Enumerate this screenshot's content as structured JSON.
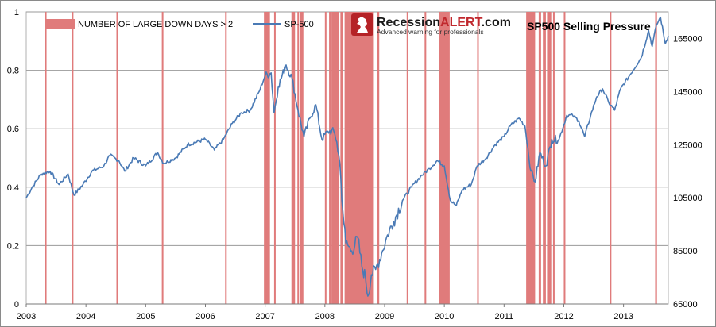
{
  "chart_data": {
    "type": "bar+line",
    "title": "SP500 Selling Pressure",
    "logo": {
      "name_prefix": "Recession",
      "name_accent": "ALERT",
      "name_suffix": ".com",
      "tagline": "Advanced warning for professionals"
    },
    "legend": [
      {
        "name": "NUMBER OF LARGE DOWN DAYS > 2",
        "kind": "bar",
        "color": "#e07b7b"
      },
      {
        "name": "SP-500",
        "kind": "line",
        "color": "#4a7ab5"
      }
    ],
    "x_range": [
      2003.0,
      2013.75
    ],
    "x_ticks": [
      "2003",
      "2004",
      "2005",
      "2006",
      "2007",
      "2008",
      "2009",
      "2010",
      "2011",
      "2012",
      "2013"
    ],
    "y_left": {
      "ticks": [
        "0",
        "0.2",
        "0.4",
        "0.6",
        "0.8",
        "1"
      ],
      "range": [
        0,
        1
      ]
    },
    "y_right": {
      "ticks": [
        "65000",
        "85000",
        "105000",
        "125000",
        "145000",
        "165000"
      ],
      "range": [
        65000,
        175000
      ]
    },
    "signal_periods": [
      [
        2003.31,
        2003.34
      ],
      [
        2003.76,
        2003.79
      ],
      [
        2004.51,
        2004.53
      ],
      [
        2005.27,
        2005.29
      ],
      [
        2006.33,
        2006.35
      ],
      [
        2006.98,
        2007.08
      ],
      [
        2007.15,
        2007.17
      ],
      [
        2007.44,
        2007.5
      ],
      [
        2007.54,
        2007.56
      ],
      [
        2007.58,
        2007.64
      ],
      [
        2008.0,
        2008.02
      ],
      [
        2008.07,
        2008.09
      ],
      [
        2008.11,
        2008.23
      ],
      [
        2008.26,
        2008.3
      ],
      [
        2008.33,
        2008.82
      ],
      [
        2008.87,
        2008.91
      ],
      [
        2009.37,
        2009.39
      ],
      [
        2009.67,
        2009.69
      ],
      [
        2009.91,
        2010.09
      ],
      [
        2010.55,
        2010.57
      ],
      [
        2011.37,
        2011.52
      ],
      [
        2011.58,
        2011.62
      ],
      [
        2011.65,
        2011.7
      ],
      [
        2011.72,
        2011.79
      ],
      [
        2011.82,
        2011.84
      ],
      [
        2012.0,
        2012.02
      ],
      [
        2012.77,
        2012.79
      ],
      [
        2013.53,
        2013.56
      ]
    ],
    "series": [
      {
        "name": "SP-500",
        "axis": "right",
        "points": [
          [
            2003.0,
            105000
          ],
          [
            2003.1,
            109000
          ],
          [
            2003.25,
            114000
          ],
          [
            2003.4,
            115000
          ],
          [
            2003.55,
            110000
          ],
          [
            2003.7,
            114000
          ],
          [
            2003.8,
            106000
          ],
          [
            2003.95,
            110000
          ],
          [
            2004.1,
            115000
          ],
          [
            2004.3,
            117000
          ],
          [
            2004.4,
            121000
          ],
          [
            2004.55,
            119000
          ],
          [
            2004.65,
            115000
          ],
          [
            2004.8,
            120000
          ],
          [
            2005.0,
            117000
          ],
          [
            2005.2,
            122000
          ],
          [
            2005.3,
            118000
          ],
          [
            2005.5,
            120000
          ],
          [
            2005.7,
            125000
          ],
          [
            2006.0,
            127000
          ],
          [
            2006.15,
            123000
          ],
          [
            2006.3,
            127000
          ],
          [
            2006.45,
            133000
          ],
          [
            2006.6,
            137000
          ],
          [
            2006.75,
            138000
          ],
          [
            2006.9,
            145000
          ],
          [
            2007.0,
            151000
          ],
          [
            2007.1,
            152000
          ],
          [
            2007.15,
            137000
          ],
          [
            2007.22,
            147000
          ],
          [
            2007.35,
            155000
          ],
          [
            2007.45,
            150000
          ],
          [
            2007.55,
            138000
          ],
          [
            2007.65,
            128000
          ],
          [
            2007.75,
            135000
          ],
          [
            2007.85,
            140000
          ],
          [
            2007.95,
            127000
          ],
          [
            2008.05,
            130000
          ],
          [
            2008.15,
            130000
          ],
          [
            2008.2,
            126000
          ],
          [
            2008.25,
            118000
          ],
          [
            2008.3,
            100000
          ],
          [
            2008.35,
            88000
          ],
          [
            2008.45,
            85000
          ],
          [
            2008.55,
            90000
          ],
          [
            2008.62,
            79000
          ],
          [
            2008.68,
            75000
          ],
          [
            2008.72,
            68000
          ],
          [
            2008.78,
            76000
          ],
          [
            2008.85,
            78000
          ],
          [
            2008.95,
            84000
          ],
          [
            2009.05,
            91000
          ],
          [
            2009.15,
            96000
          ],
          [
            2009.3,
            104000
          ],
          [
            2009.45,
            109000
          ],
          [
            2009.6,
            113000
          ],
          [
            2009.75,
            116000
          ],
          [
            2009.88,
            119000
          ],
          [
            2010.0,
            117000
          ],
          [
            2010.1,
            104000
          ],
          [
            2010.2,
            102000
          ],
          [
            2010.3,
            108000
          ],
          [
            2010.45,
            110000
          ],
          [
            2010.55,
            117000
          ],
          [
            2010.7,
            120000
          ],
          [
            2010.85,
            125000
          ],
          [
            2011.0,
            128000
          ],
          [
            2011.1,
            132000
          ],
          [
            2011.25,
            135000
          ],
          [
            2011.35,
            132000
          ],
          [
            2011.45,
            115000
          ],
          [
            2011.52,
            111000
          ],
          [
            2011.6,
            122000
          ],
          [
            2011.7,
            117000
          ],
          [
            2011.8,
            127000
          ],
          [
            2011.92,
            127000
          ],
          [
            2012.05,
            136000
          ],
          [
            2012.15,
            136000
          ],
          [
            2012.25,
            134000
          ],
          [
            2012.35,
            128000
          ],
          [
            2012.45,
            136000
          ],
          [
            2012.55,
            143000
          ],
          [
            2012.65,
            146000
          ],
          [
            2012.75,
            141000
          ],
          [
            2012.85,
            138000
          ],
          [
            2012.95,
            146000
          ],
          [
            2013.1,
            151000
          ],
          [
            2013.3,
            158000
          ],
          [
            2013.42,
            168000
          ],
          [
            2013.48,
            162000
          ],
          [
            2013.55,
            170000
          ],
          [
            2013.62,
            173000
          ],
          [
            2013.7,
            163000
          ],
          [
            2013.75,
            166000
          ]
        ]
      }
    ]
  }
}
